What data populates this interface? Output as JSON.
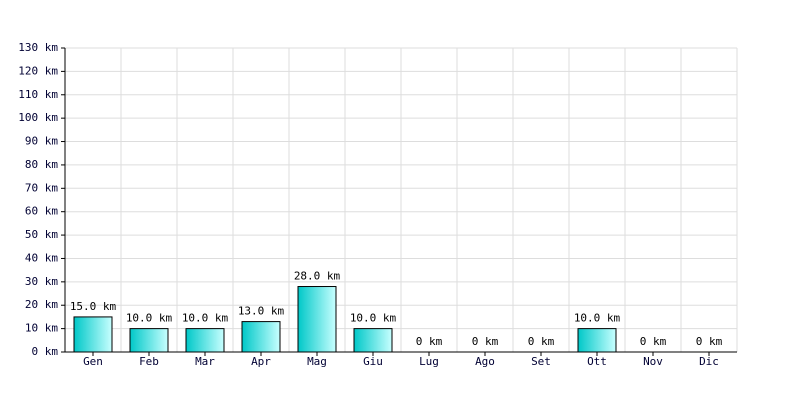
{
  "chart_data": {
    "type": "bar",
    "categories": [
      "Gen",
      "Feb",
      "Mar",
      "Apr",
      "Mag",
      "Giu",
      "Lug",
      "Ago",
      "Set",
      "Ott",
      "Nov",
      "Dic"
    ],
    "values": [
      15,
      10,
      10,
      13,
      28,
      10,
      0,
      0,
      0,
      10,
      0,
      0
    ],
    "value_labels": [
      "15.0 km",
      "10.0 km",
      "10.0 km",
      "13.0 km",
      "28.0 km",
      "10.0 km",
      "0 km",
      "0 km",
      "0 km",
      "10.0 km",
      "0 km",
      "0 km"
    ],
    "color": "#00c8c8",
    "ylim": [
      0,
      130
    ],
    "yticks": [
      {
        "value": 0,
        "label": "0 km"
      },
      {
        "value": 10,
        "label": "10 km"
      },
      {
        "value": 20,
        "label": "20 km"
      },
      {
        "value": 30,
        "label": "30 km"
      },
      {
        "value": 40,
        "label": "40 km"
      },
      {
        "value": 50,
        "label": "50 km"
      },
      {
        "value": 60,
        "label": "60 km"
      },
      {
        "value": 70,
        "label": "70 km"
      },
      {
        "value": 80,
        "label": "80 km"
      },
      {
        "value": 90,
        "label": "90 km"
      },
      {
        "value": 100,
        "label": "100 km"
      },
      {
        "value": 110,
        "label": "110 km"
      },
      {
        "value": 120,
        "label": "120 km"
      },
      {
        "value": 130,
        "label": "130 km"
      }
    ],
    "grid": true
  }
}
